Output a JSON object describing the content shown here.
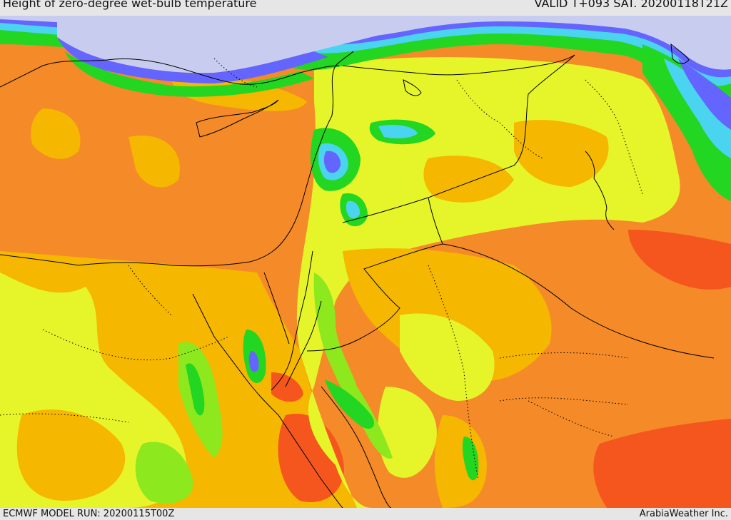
{
  "header": {
    "title": "Height of zero-degree wet-bulb temperature",
    "valid": "VALID T+093 SAT. 20200118T21Z"
  },
  "footer": {
    "model_run": "ECMWF MODEL RUN: 20200115T00Z",
    "credit": "ArabiaWeather Inc."
  },
  "colors": {
    "cold": "#c8cdf0",
    "blue": "#6464ff",
    "cyan": "#4ad4f0",
    "green": "#22d622",
    "lightgreen": "#8ee81e",
    "yellow": "#e6f52a",
    "amber": "#f5b700",
    "orange": "#f58a28",
    "red": "#f5561e",
    "lines": "#000000"
  }
}
